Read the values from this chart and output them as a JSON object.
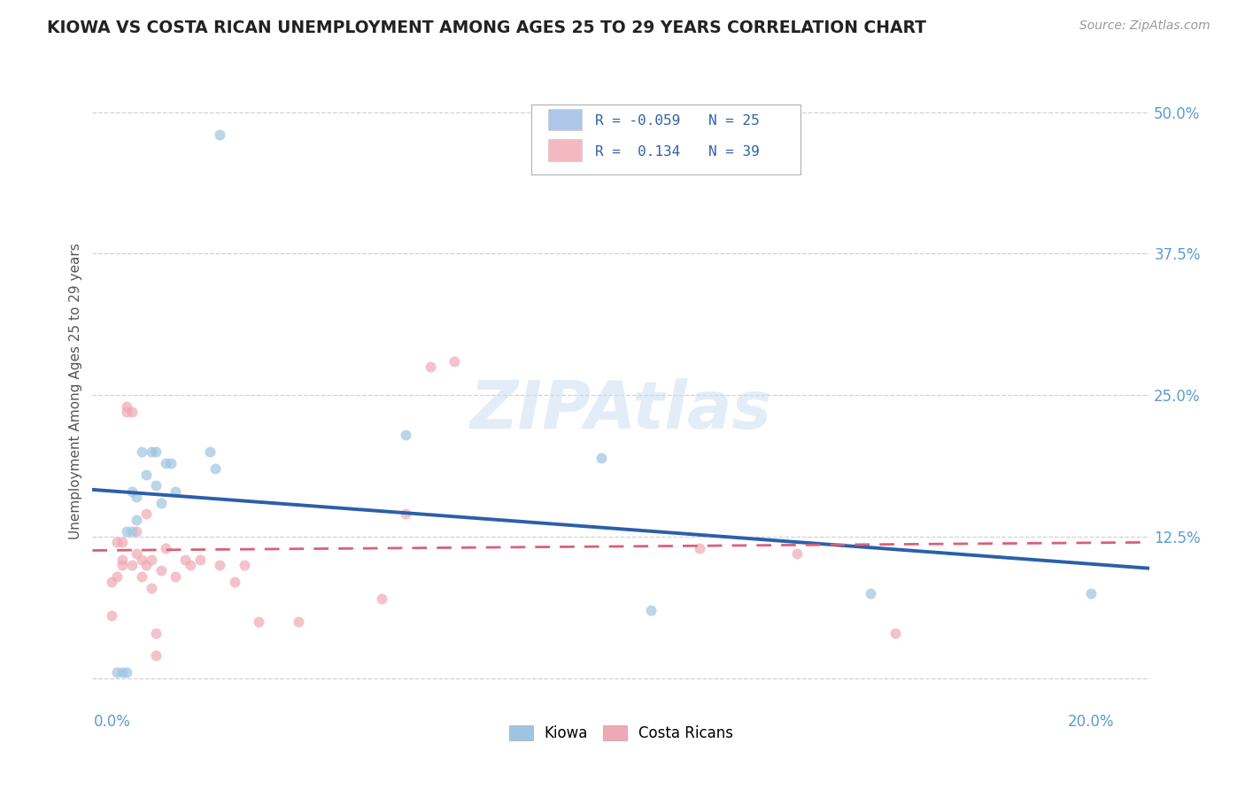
{
  "title": "KIOWA VS COSTA RICAN UNEMPLOYMENT AMONG AGES 25 TO 29 YEARS CORRELATION CHART",
  "source": "Source: ZipAtlas.com",
  "ylabel": "Unemployment Among Ages 25 to 29 years",
  "x_min": -0.004,
  "x_max": 0.212,
  "y_min": -0.028,
  "y_max": 0.535,
  "legend_entries": [
    {
      "label": "Kiowa",
      "R": "-0.059",
      "N": "25",
      "color": "#aec6e8"
    },
    {
      "label": "Costa Ricans",
      "R": " 0.134",
      "N": "39",
      "color": "#f4b8c1"
    }
  ],
  "kiowa_x": [
    0.001,
    0.002,
    0.003,
    0.003,
    0.004,
    0.004,
    0.005,
    0.005,
    0.006,
    0.007,
    0.008,
    0.009,
    0.009,
    0.01,
    0.011,
    0.012,
    0.013,
    0.02,
    0.021,
    0.022,
    0.06,
    0.1,
    0.11,
    0.155,
    0.2
  ],
  "kiowa_y": [
    0.005,
    0.005,
    0.005,
    0.13,
    0.13,
    0.165,
    0.14,
    0.16,
    0.2,
    0.18,
    0.2,
    0.17,
    0.2,
    0.155,
    0.19,
    0.19,
    0.165,
    0.2,
    0.185,
    0.48,
    0.215,
    0.195,
    0.06,
    0.075,
    0.075
  ],
  "cr_x": [
    0.0,
    0.0,
    0.001,
    0.001,
    0.002,
    0.002,
    0.002,
    0.003,
    0.003,
    0.004,
    0.004,
    0.005,
    0.005,
    0.006,
    0.006,
    0.007,
    0.007,
    0.008,
    0.008,
    0.009,
    0.009,
    0.01,
    0.011,
    0.013,
    0.015,
    0.016,
    0.018,
    0.022,
    0.025,
    0.027,
    0.03,
    0.038,
    0.055,
    0.06,
    0.065,
    0.07,
    0.12,
    0.14,
    0.16
  ],
  "cr_y": [
    0.055,
    0.085,
    0.09,
    0.12,
    0.1,
    0.105,
    0.12,
    0.235,
    0.24,
    0.235,
    0.1,
    0.13,
    0.11,
    0.105,
    0.09,
    0.145,
    0.1,
    0.105,
    0.08,
    0.04,
    0.02,
    0.095,
    0.115,
    0.09,
    0.105,
    0.1,
    0.105,
    0.1,
    0.085,
    0.1,
    0.05,
    0.05,
    0.07,
    0.145,
    0.275,
    0.28,
    0.115,
    0.11,
    0.04
  ],
  "kiowa_color": "#9ec4e0",
  "cr_color": "#f0a8b5",
  "kiowa_line_color": "#2b5faa",
  "cr_line_color": "#d9607a",
  "background_color": "#ffffff",
  "grid_color": "#cccccc",
  "title_color": "#222222",
  "axis_label_color": "#5b9bd5",
  "watermark_text": "ZIPAtlas",
  "marker_size": 75,
  "marker_alpha": 0.7
}
